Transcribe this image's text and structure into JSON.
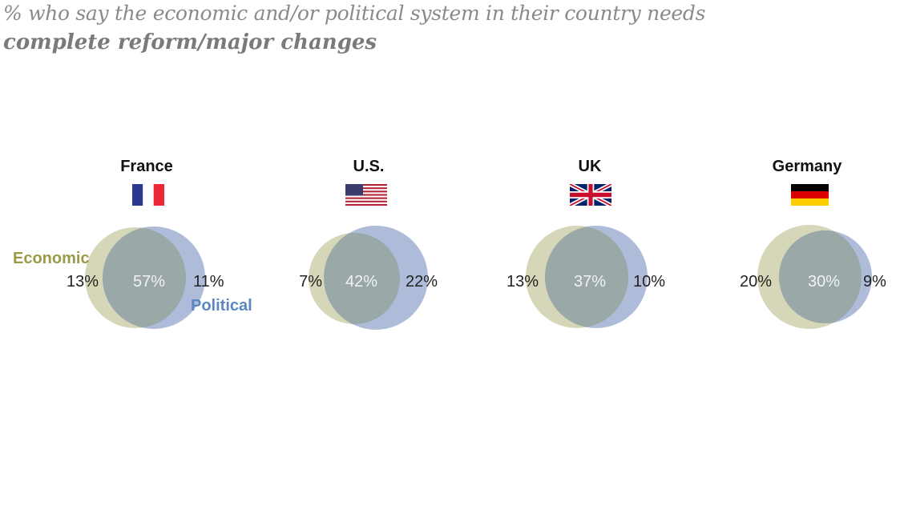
{
  "title_line1": "% who say the economic and/or political system in their country needs",
  "title_line2": "complete reform/major changes",
  "legend": {
    "economic": "Economic",
    "political": "Political"
  },
  "colors": {
    "economic": "#d6d6b8",
    "political": "#aebbd9",
    "overlap": "#9aa8a8",
    "economic_label": "#9a9a48",
    "political_label": "#5b88c3"
  },
  "chart_data": {
    "type": "venn",
    "sets": [
      "Economic",
      "Political"
    ],
    "groups": [
      {
        "country": "France",
        "flag": "france-flag-icon",
        "economic_only": "13%",
        "both": "57%",
        "political_only": "11%"
      },
      {
        "country": "U.S.",
        "flag": "us-flag-icon",
        "economic_only": "7%",
        "both": "42%",
        "political_only": "22%"
      },
      {
        "country": "UK",
        "flag": "uk-flag-icon",
        "economic_only": "13%",
        "both": "37%",
        "political_only": "10%"
      },
      {
        "country": "Germany",
        "flag": "germany-flag-icon",
        "economic_only": "20%",
        "both": "30%",
        "political_only": "9%"
      }
    ]
  }
}
